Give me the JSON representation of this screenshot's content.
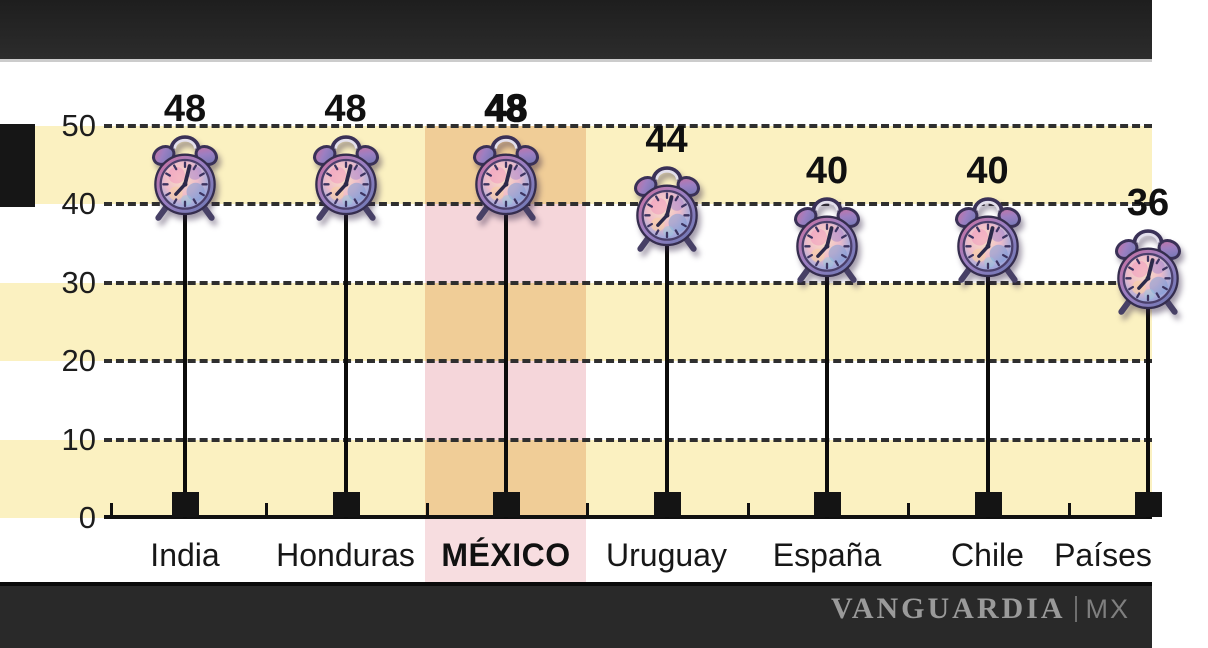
{
  "watermark": {
    "brand": "VANGUARDIA",
    "suffix": "MX"
  },
  "chart_data": {
    "type": "bar",
    "subtype": "lollipop-pictogram",
    "icon": "alarm-clock-icon",
    "title": "",
    "xlabel": "",
    "ylabel": "",
    "categories": [
      "India",
      "Honduras",
      "MÉXICO",
      "Uruguay",
      "España",
      "Chile",
      "Países"
    ],
    "values": [
      48,
      48,
      48,
      44,
      40,
      40,
      36
    ],
    "highlight_index": 2,
    "highlighted_category": "MÉXICO",
    "y_ticks": [
      50,
      40,
      30,
      20,
      10,
      0
    ],
    "ylim": [
      0,
      50
    ],
    "gridlines": "dashed-horizontal",
    "legend_position": "none",
    "colors": {
      "band_yellow": "#fbf1c1",
      "highlight_over_yellow": "#f0cd97",
      "highlight_over_white": "#f5d6da",
      "highlight_label_area": "#f7dde0",
      "gridline": "#2f2f2f",
      "stem": "#0c0c0c",
      "top_bar": "#262626",
      "bottom_bar": "#292929",
      "watermark_gray": "#9a9a9a"
    }
  }
}
